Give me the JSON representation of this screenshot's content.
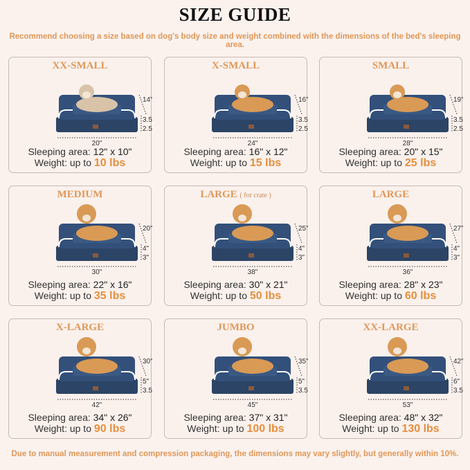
{
  "title": "SIZE GUIDE",
  "subtitle": "Recommend choosing a size based on dog's body size and weight combined with the dimensions of the bed's sleeping area.",
  "footer": "Due to manual measurement and compression packaging, the dimensions may vary slightly, but generally within 10%.",
  "colors": {
    "accent": "#e09758",
    "bed": "#2c4466",
    "background": "#fbf2ee"
  },
  "sleeping_label": "Sleeping area:",
  "weight_label": "Weight: up to",
  "cards": [
    {
      "name": "XX-SMALL",
      "note": "",
      "pet": "cat",
      "width": "20\"",
      "back": "14\"",
      "cushion": "3.5\"",
      "base": "2.5\"",
      "sleeping": "12\" x 10\"",
      "weight": "10 lbs"
    },
    {
      "name": "X-SMALL",
      "note": "",
      "pet": "dog",
      "width": "24\"",
      "back": "16\"",
      "cushion": "3.5\"",
      "base": "2.5\"",
      "sleeping": "16\" x 12\"",
      "weight": "15 lbs"
    },
    {
      "name": "SMALL",
      "note": "",
      "pet": "dog",
      "width": "28\"",
      "back": "19\"",
      "cushion": "3.5\"",
      "base": "2.5\"",
      "sleeping": "20\" x 15\"",
      "weight": "25 lbs"
    },
    {
      "name": "MEDIUM",
      "note": "",
      "pet": "dog",
      "width": "30\"",
      "back": "20\"",
      "cushion": "4\"",
      "base": "3\"",
      "sleeping": "22\" x 16\"",
      "weight": "35 lbs"
    },
    {
      "name": "LARGE",
      "note": "( for crate )",
      "pet": "dog",
      "width": "38\"",
      "back": "25\"",
      "cushion": "4\"",
      "base": "3\"",
      "sleeping": "30\" x 21\"",
      "weight": "50 lbs"
    },
    {
      "name": "LARGE",
      "note": "",
      "pet": "dog",
      "width": "36\"",
      "back": "27\"",
      "cushion": "4\"",
      "base": "3\"",
      "sleeping": "28\" x 23\"",
      "weight": "60 lbs"
    },
    {
      "name": "X-LARGE",
      "note": "",
      "pet": "dog",
      "width": "42\"",
      "back": "30\"",
      "cushion": "5\"",
      "base": "3.5\"",
      "sleeping": "34\" x 26\"",
      "weight": "90 lbs"
    },
    {
      "name": "JUMBO",
      "note": "",
      "pet": "dog",
      "width": "45\"",
      "back": "35\"",
      "cushion": "5\"",
      "base": "3.5\"",
      "sleeping": "37\" x 31\"",
      "weight": "100 lbs"
    },
    {
      "name": "XX-LARGE",
      "note": "",
      "pet": "dog",
      "width": "53\"",
      "back": "42\"",
      "cushion": "6\"",
      "base": "3.5\"",
      "sleeping": "48\" x 32\"",
      "weight": "130 lbs"
    }
  ]
}
